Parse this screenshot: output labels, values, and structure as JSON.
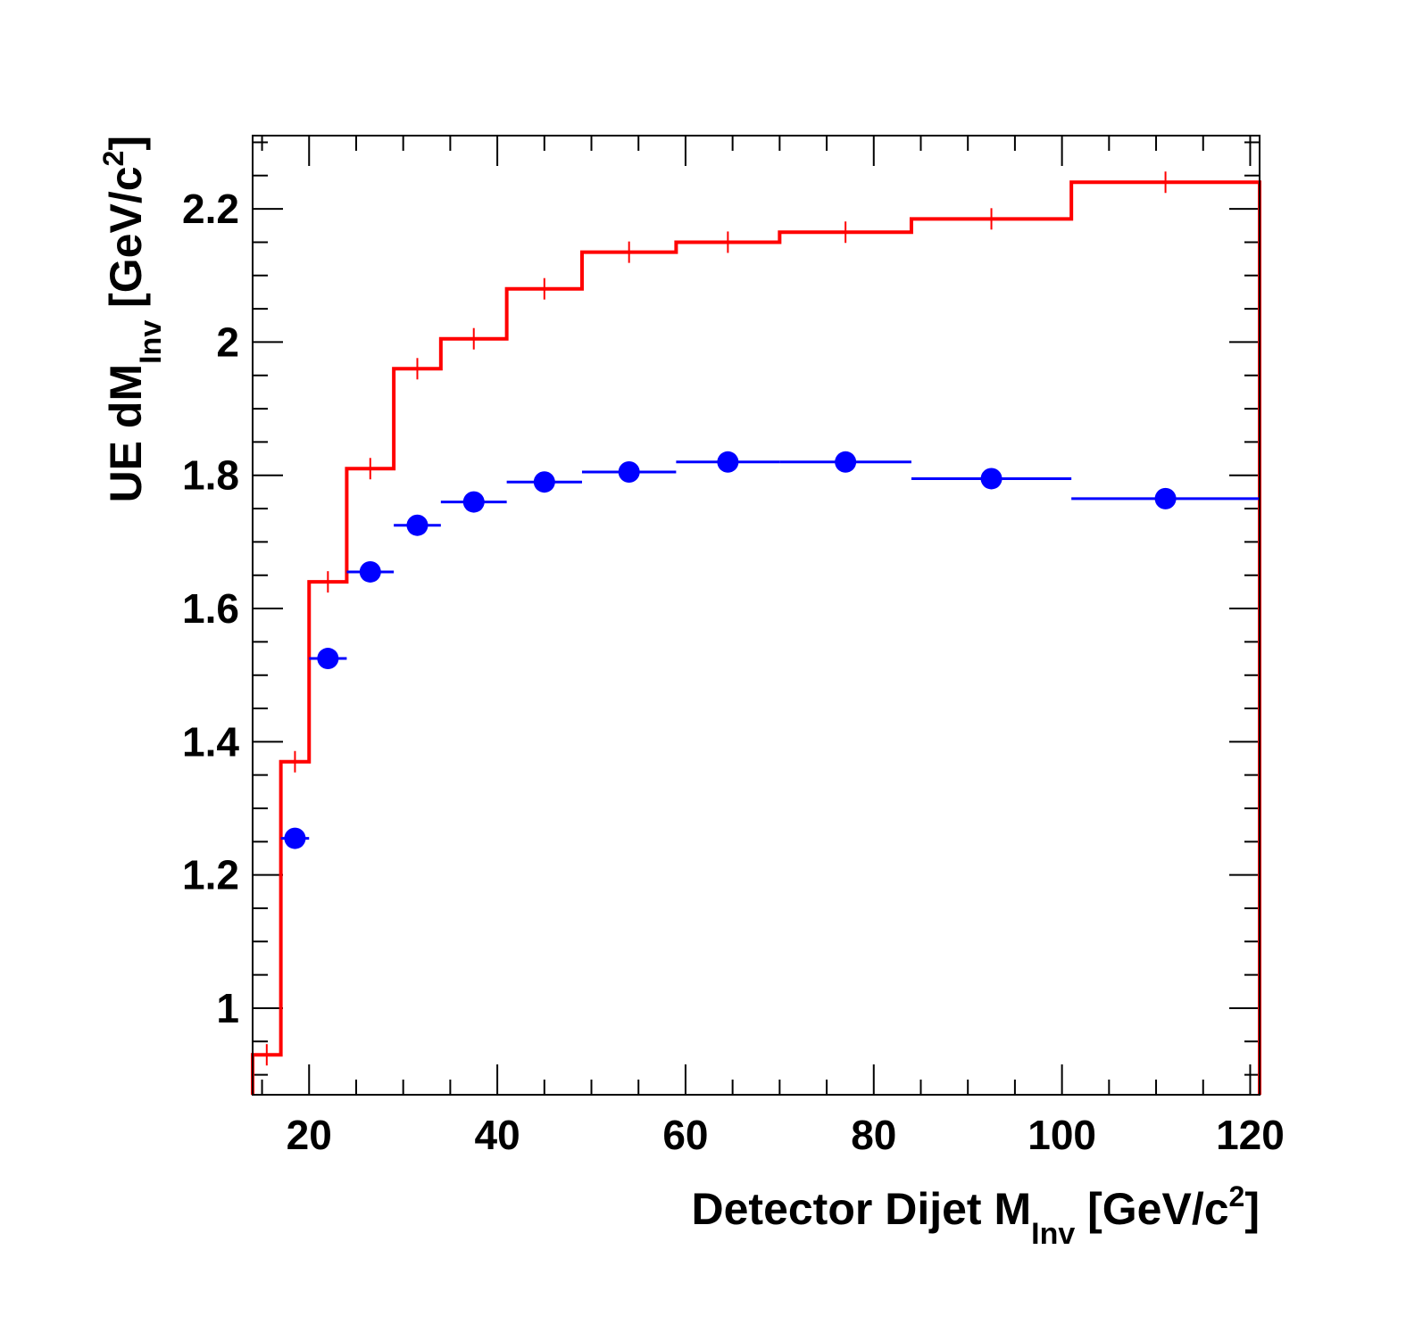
{
  "chart_data": {
    "type": "scatter",
    "xlabel": {
      "pre": "Detector Dijet M",
      "sub": "Inv",
      "mid": " [GeV/c",
      "sup": "2",
      "post": "]"
    },
    "ylabel": {
      "pre": "UE dM",
      "sub": "Inv",
      "mid": " [GeV/c",
      "sup": "2",
      "post": "]"
    },
    "xlim": [
      14,
      121
    ],
    "ylim": [
      0.87,
      2.31
    ],
    "x_ticks": [
      20,
      40,
      60,
      80,
      100,
      120
    ],
    "x_tick_labels": [
      "20",
      "40",
      "60",
      "80",
      "100",
      "120"
    ],
    "y_ticks": [
      1.0,
      1.2,
      1.4,
      1.6,
      1.8,
      2.0,
      2.2
    ],
    "y_tick_labels": [
      "1",
      "1.2",
      "1.4",
      "1.6",
      "1.8",
      "2",
      "2.2"
    ],
    "grid": false,
    "series": [
      {
        "style": "histogram-step",
        "color": "#ff0000",
        "bins": [
          {
            "x_low": 14,
            "x_high": 17,
            "x": 15.5,
            "y": 0.93
          },
          {
            "x_low": 17,
            "x_high": 20,
            "x": 18.5,
            "y": 1.37
          },
          {
            "x_low": 20,
            "x_high": 24,
            "x": 22.0,
            "y": 1.64
          },
          {
            "x_low": 24,
            "x_high": 29,
            "x": 26.5,
            "y": 1.81
          },
          {
            "x_low": 29,
            "x_high": 34,
            "x": 31.5,
            "y": 1.96
          },
          {
            "x_low": 34,
            "x_high": 41,
            "x": 37.5,
            "y": 2.005
          },
          {
            "x_low": 41,
            "x_high": 49,
            "x": 45.0,
            "y": 2.08
          },
          {
            "x_low": 49,
            "x_high": 59,
            "x": 54.0,
            "y": 2.135
          },
          {
            "x_low": 59,
            "x_high": 70,
            "x": 64.5,
            "y": 2.15
          },
          {
            "x_low": 70,
            "x_high": 84,
            "x": 77.0,
            "y": 2.165
          },
          {
            "x_low": 84,
            "x_high": 101,
            "x": 92.5,
            "y": 2.185
          },
          {
            "x_low": 101,
            "x_high": 121,
            "x": 111.0,
            "y": 2.24
          }
        ]
      },
      {
        "style": "markers-with-x-errors",
        "color": "#0000ff",
        "points": [
          {
            "x": 18.5,
            "x_low": 17,
            "x_high": 20,
            "y": 1.255
          },
          {
            "x": 22.0,
            "x_low": 20,
            "x_high": 24,
            "y": 1.525
          },
          {
            "x": 26.5,
            "x_low": 24,
            "x_high": 29,
            "y": 1.655
          },
          {
            "x": 31.5,
            "x_low": 29,
            "x_high": 34,
            "y": 1.725
          },
          {
            "x": 37.5,
            "x_low": 34,
            "x_high": 41,
            "y": 1.76
          },
          {
            "x": 45.0,
            "x_low": 41,
            "x_high": 49,
            "y": 1.79
          },
          {
            "x": 54.0,
            "x_low": 49,
            "x_high": 59,
            "y": 1.805
          },
          {
            "x": 64.5,
            "x_low": 59,
            "x_high": 70,
            "y": 1.82
          },
          {
            "x": 77.0,
            "x_low": 70,
            "x_high": 84,
            "y": 1.82
          },
          {
            "x": 92.5,
            "x_low": 84,
            "x_high": 101,
            "y": 1.795
          },
          {
            "x": 111.0,
            "x_low": 101,
            "x_high": 121,
            "y": 1.765
          }
        ]
      }
    ]
  }
}
